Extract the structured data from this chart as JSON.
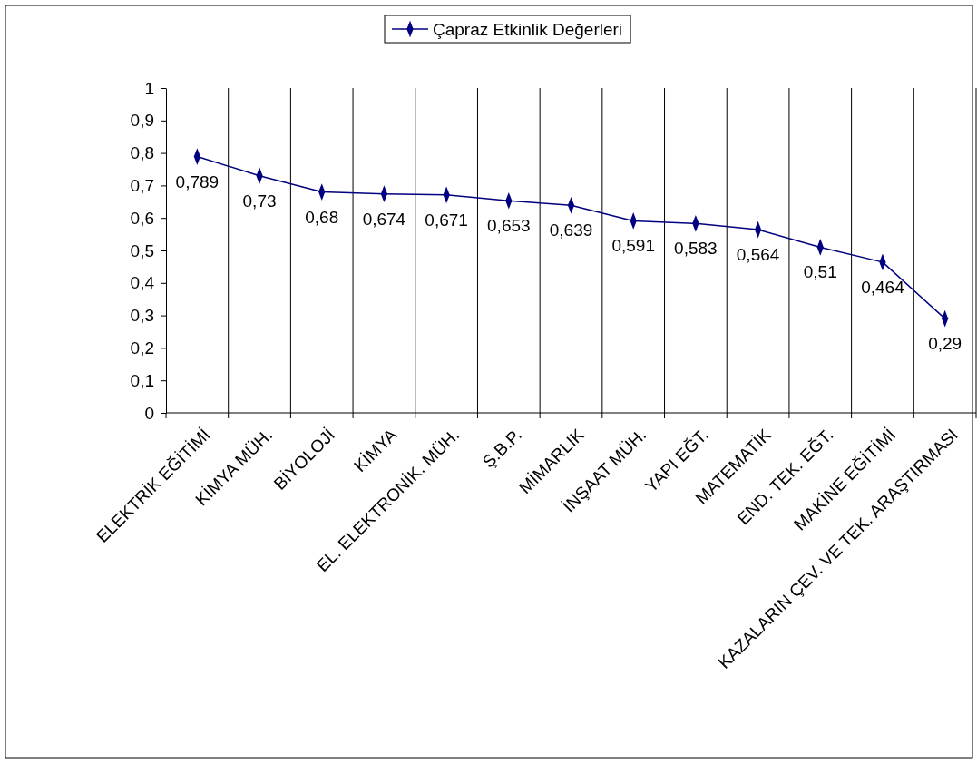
{
  "chart_data": {
    "type": "line",
    "categories": [
      "ELEKTRİK EĞİTİMİ",
      "KİMYA MÜH.",
      "BİYOLOJİ",
      "KİMYA",
      "EL. ELEKTRONİK. MÜH.",
      "Ş.B.P.",
      "MİMARLIK",
      "İNŞAAT MÜH.",
      "YAPI EĞT.",
      "MATEMATİK",
      "END. TEK. EĞT.",
      "MAKİNE EĞİTİMİ",
      "KAZALARIN ÇEV. VE TEK. ARAŞTIRMASI"
    ],
    "series": [
      {
        "name": "Çapraz Etkinlik Değerleri",
        "color": "#000080",
        "values": [
          0.789,
          0.73,
          0.68,
          0.674,
          0.671,
          0.653,
          0.639,
          0.591,
          0.583,
          0.564,
          0.51,
          0.464,
          0.29
        ],
        "value_labels": [
          "0,789",
          "0,73",
          "0,68",
          "0,674",
          "0,671",
          "0,653",
          "0,639",
          "0,591",
          "0,583",
          "0,564",
          "0,51",
          "0,464",
          "0,29"
        ]
      }
    ],
    "ylim": [
      0,
      1
    ],
    "yticks": [
      0,
      {
        "value": 0.1,
        "label": "0,1"
      },
      {
        "value": 0.2,
        "label": "0,2"
      },
      {
        "value": 0.3,
        "label": "0,3"
      },
      {
        "value": 0.4,
        "label": "0,4"
      },
      {
        "value": 0.5,
        "label": "0,5"
      },
      {
        "value": 0.6,
        "label": "0,6"
      },
      {
        "value": 0.7,
        "label": "0,7"
      },
      {
        "value": 0.8,
        "label": "0,8"
      },
      {
        "value": 0.9,
        "label": "0,9"
      },
      1
    ],
    "grid": "x",
    "legend": "top",
    "marker": "diamond",
    "line_style": "solid"
  }
}
